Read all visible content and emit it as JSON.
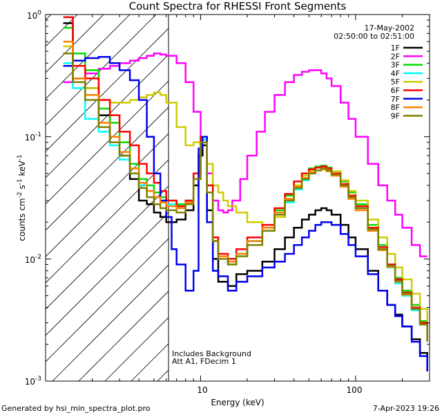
{
  "chart_data": {
    "type": "line",
    "title": "Count Spectra for RHESSI Front Segments",
    "xlabel": "Energy (keV)",
    "ylabel": "counts cm-2 s-1 keV-1",
    "x_scale": "log",
    "y_scale": "log",
    "xlim": [
      1.0,
      300.0
    ],
    "ylim": [
      0.001,
      1.0
    ],
    "x_tick_labels": [
      "10",
      "100"
    ],
    "y_tick_labels": [
      "10-3",
      "10-2",
      "10-1",
      "100"
    ],
    "date": "17-May-2002",
    "time_range": "02:50:00 to 02:51:00",
    "annotations": [
      "Includes Background",
      "Att A1, FDecim 1"
    ],
    "hatched_region": {
      "x_from": 1.0,
      "x_to": 6.0
    },
    "footer_left": "Generated by hsi_min_spectra_plot.pro",
    "footer_right": "7-Apr-2023 19:26",
    "series": [
      {
        "name": "1F",
        "color": "#000000",
        "x": [
          1.3,
          1.5,
          1.8,
          2.2,
          2.6,
          3.0,
          3.5,
          4.0,
          4.5,
          5.0,
          5.5,
          6.0,
          7.0,
          8.0,
          9.0,
          9.7,
          10.3,
          11.0,
          12.0,
          13.0,
          15.0,
          17.0,
          20.0,
          25.0,
          30.0,
          35.0,
          40.0,
          45.0,
          50.0,
          55.0,
          60.0,
          65.0,
          70.0,
          80.0,
          90.0,
          100.0,
          120.0,
          140.0,
          160.0,
          180.0,
          200.0,
          230.0,
          260.0,
          290.0
        ],
        "y": [
          0.85,
          0.3,
          0.25,
          0.15,
          0.1,
          0.07,
          0.045,
          0.03,
          0.028,
          0.024,
          0.022,
          0.02,
          0.021,
          0.025,
          0.04,
          0.07,
          0.085,
          0.025,
          0.01,
          0.0065,
          0.006,
          0.0075,
          0.008,
          0.0095,
          0.012,
          0.015,
          0.018,
          0.021,
          0.023,
          0.025,
          0.026,
          0.025,
          0.023,
          0.019,
          0.015,
          0.012,
          0.008,
          0.0055,
          0.0042,
          0.0035,
          0.0028,
          0.0022,
          0.0017,
          0.0012
        ]
      },
      {
        "name": "2F",
        "color": "#ff00ff",
        "x": [
          1.3,
          1.5,
          1.8,
          2.2,
          2.6,
          3.0,
          3.5,
          4.0,
          4.5,
          5.0,
          5.5,
          6.0,
          7.0,
          8.0,
          9.0,
          10.0,
          11.0,
          12.0,
          13.0,
          14.0,
          15.0,
          16.0,
          18.0,
          20.0,
          23.0,
          26.0,
          30.0,
          35.0,
          40.0,
          45.0,
          50.0,
          55.0,
          60.0,
          65.0,
          70.0,
          80.0,
          90.0,
          100.0,
          120.0,
          140.0,
          160.0,
          180.0,
          200.0,
          230.0,
          260.0,
          290.0
        ],
        "y": [
          0.28,
          0.3,
          0.33,
          0.36,
          0.38,
          0.4,
          0.42,
          0.44,
          0.46,
          0.48,
          0.47,
          0.46,
          0.4,
          0.28,
          0.16,
          0.09,
          0.05,
          0.03,
          0.025,
          0.024,
          0.025,
          0.03,
          0.045,
          0.07,
          0.11,
          0.16,
          0.22,
          0.28,
          0.32,
          0.34,
          0.35,
          0.35,
          0.33,
          0.3,
          0.26,
          0.19,
          0.14,
          0.1,
          0.06,
          0.04,
          0.03,
          0.023,
          0.018,
          0.013,
          0.0105,
          0.0105
        ]
      },
      {
        "name": "3F",
        "color": "#00dd00",
        "x": [
          1.3,
          1.5,
          1.8,
          2.2,
          2.6,
          3.0,
          3.5,
          4.0,
          4.5,
          5.0,
          5.5,
          6.0,
          7.0,
          8.0,
          9.0,
          10.0,
          11.0,
          12.0,
          13.0,
          15.0,
          17.0,
          20.0,
          25.0,
          30.0,
          35.0,
          40.0,
          45.0,
          50.0,
          55.0,
          60.0,
          65.0,
          70.0,
          80.0,
          90.0,
          100.0,
          120.0,
          140.0,
          160.0,
          180.0,
          200.0,
          230.0,
          260.0,
          290.0
        ],
        "y": [
          0.78,
          0.48,
          0.35,
          0.17,
          0.13,
          0.09,
          0.06,
          0.045,
          0.04,
          0.035,
          0.032,
          0.03,
          0.028,
          0.03,
          0.05,
          0.1,
          0.04,
          0.015,
          0.01,
          0.009,
          0.011,
          0.014,
          0.018,
          0.025,
          0.033,
          0.043,
          0.05,
          0.055,
          0.057,
          0.058,
          0.056,
          0.052,
          0.043,
          0.035,
          0.028,
          0.019,
          0.013,
          0.009,
          0.007,
          0.0055,
          0.0042,
          0.0031,
          0.0023
        ]
      },
      {
        "name": "4F",
        "color": "#00ffff",
        "x": [
          1.3,
          1.5,
          1.8,
          2.2,
          2.6,
          3.0,
          3.5,
          4.0,
          4.5,
          5.0,
          5.5,
          6.0,
          7.0,
          8.0,
          9.0,
          10.0,
          11.0,
          12.0,
          13.0,
          15.0,
          17.0,
          20.0,
          25.0,
          30.0,
          35.0,
          40.0,
          45.0,
          50.0,
          55.0,
          60.0,
          65.0,
          70.0,
          80.0,
          90.0,
          100.0,
          120.0,
          140.0,
          160.0,
          180.0,
          200.0,
          230.0,
          260.0,
          290.0
        ],
        "y": [
          0.4,
          0.25,
          0.14,
          0.11,
          0.085,
          0.065,
          0.05,
          0.04,
          0.036,
          0.032,
          0.03,
          0.028,
          0.027,
          0.03,
          0.05,
          0.095,
          0.035,
          0.014,
          0.01,
          0.0095,
          0.011,
          0.014,
          0.017,
          0.022,
          0.029,
          0.037,
          0.044,
          0.05,
          0.053,
          0.055,
          0.053,
          0.049,
          0.04,
          0.032,
          0.026,
          0.017,
          0.012,
          0.0085,
          0.0063,
          0.005,
          0.0038,
          0.0029,
          0.0021
        ]
      },
      {
        "name": "5F",
        "color": "#cccc00",
        "x": [
          1.3,
          1.5,
          1.8,
          2.2,
          2.6,
          3.0,
          3.5,
          4.0,
          4.5,
          5.0,
          5.5,
          6.0,
          7.0,
          8.0,
          9.0,
          10.0,
          11.0,
          12.0,
          13.0,
          14.0,
          15.0,
          17.0,
          20.0,
          25.0,
          30.0,
          35.0,
          40.0,
          45.0,
          50.0,
          55.0,
          60.0,
          65.0,
          70.0,
          80.0,
          90.0,
          100.0,
          120.0,
          140.0,
          160.0,
          180.0,
          200.0,
          230.0,
          260.0,
          290.0
        ],
        "y": [
          0.55,
          0.3,
          0.25,
          0.2,
          0.19,
          0.19,
          0.2,
          0.21,
          0.22,
          0.23,
          0.22,
          0.19,
          0.12,
          0.085,
          0.09,
          0.1,
          0.06,
          0.04,
          0.035,
          0.03,
          0.027,
          0.024,
          0.02,
          0.018,
          0.022,
          0.03,
          0.04,
          0.048,
          0.053,
          0.056,
          0.057,
          0.055,
          0.052,
          0.044,
          0.036,
          0.03,
          0.021,
          0.015,
          0.011,
          0.0085,
          0.0068,
          0.0052,
          0.0039,
          0.003
        ]
      },
      {
        "name": "6F",
        "color": "#ff0000",
        "x": [
          1.3,
          1.5,
          1.8,
          2.2,
          2.6,
          3.0,
          3.5,
          4.0,
          4.5,
          5.0,
          5.5,
          6.0,
          7.0,
          8.0,
          9.0,
          10.0,
          11.0,
          12.0,
          13.0,
          15.0,
          17.0,
          20.0,
          25.0,
          30.0,
          35.0,
          40.0,
          45.0,
          50.0,
          55.0,
          60.0,
          65.0,
          70.0,
          80.0,
          90.0,
          100.0,
          120.0,
          140.0,
          160.0,
          180.0,
          200.0,
          230.0,
          260.0,
          290.0
        ],
        "y": [
          0.95,
          0.38,
          0.3,
          0.2,
          0.15,
          0.11,
          0.085,
          0.06,
          0.05,
          0.042,
          0.036,
          0.03,
          0.027,
          0.03,
          0.05,
          0.1,
          0.04,
          0.015,
          0.011,
          0.01,
          0.012,
          0.015,
          0.019,
          0.026,
          0.034,
          0.043,
          0.05,
          0.054,
          0.056,
          0.057,
          0.055,
          0.05,
          0.041,
          0.033,
          0.027,
          0.018,
          0.0125,
          0.009,
          0.0068,
          0.0053,
          0.004,
          0.003,
          0.0022
        ]
      },
      {
        "name": "7F",
        "color": "#0000ee",
        "x": [
          1.3,
          1.5,
          1.8,
          2.2,
          2.6,
          3.0,
          3.5,
          4.0,
          4.5,
          5.0,
          5.5,
          6.0,
          6.5,
          7.0,
          8.0,
          9.0,
          9.7,
          10.3,
          11.0,
          12.0,
          13.0,
          15.0,
          17.0,
          20.0,
          25.0,
          30.0,
          35.0,
          40.0,
          45.0,
          50.0,
          55.0,
          60.0,
          65.0,
          70.0,
          80.0,
          90.0,
          100.0,
          120.0,
          140.0,
          160.0,
          180.0,
          200.0,
          230.0,
          260.0,
          290.0
        ],
        "y": [
          0.38,
          0.42,
          0.44,
          0.45,
          0.4,
          0.35,
          0.29,
          0.2,
          0.1,
          0.05,
          0.03,
          0.022,
          0.012,
          0.009,
          0.0055,
          0.008,
          0.08,
          0.1,
          0.02,
          0.008,
          0.0072,
          0.0055,
          0.0065,
          0.0072,
          0.0085,
          0.0095,
          0.011,
          0.013,
          0.015,
          0.017,
          0.019,
          0.02,
          0.02,
          0.019,
          0.016,
          0.013,
          0.0105,
          0.0075,
          0.0055,
          0.0042,
          0.0034,
          0.0028,
          0.0021,
          0.0016,
          0.0012
        ]
      },
      {
        "name": "8F",
        "color": "#ff8000",
        "x": [
          1.3,
          1.5,
          1.8,
          2.2,
          2.6,
          3.0,
          3.5,
          4.0,
          4.5,
          5.0,
          5.5,
          6.0,
          7.0,
          8.0,
          9.0,
          10.0,
          11.0,
          12.0,
          13.0,
          15.0,
          17.0,
          20.0,
          25.0,
          30.0,
          35.0,
          40.0,
          45.0,
          50.0,
          55.0,
          60.0,
          65.0,
          70.0,
          80.0,
          90.0,
          100.0,
          120.0,
          140.0,
          160.0,
          180.0,
          200.0,
          230.0,
          260.0,
          290.0
        ],
        "y": [
          0.6,
          0.3,
          0.22,
          0.13,
          0.1,
          0.075,
          0.055,
          0.042,
          0.036,
          0.032,
          0.029,
          0.027,
          0.026,
          0.029,
          0.045,
          0.09,
          0.035,
          0.014,
          0.0105,
          0.0095,
          0.011,
          0.014,
          0.018,
          0.024,
          0.031,
          0.039,
          0.046,
          0.051,
          0.053,
          0.054,
          0.052,
          0.048,
          0.039,
          0.031,
          0.025,
          0.017,
          0.0118,
          0.0086,
          0.0065,
          0.0051,
          0.0039,
          0.0029,
          0.0021
        ]
      },
      {
        "name": "9F",
        "color": "#808000",
        "x": [
          1.3,
          1.5,
          1.8,
          2.2,
          2.6,
          3.0,
          3.5,
          4.0,
          4.5,
          5.0,
          5.5,
          6.0,
          7.0,
          8.0,
          9.0,
          10.0,
          11.0,
          12.0,
          13.0,
          15.0,
          17.0,
          20.0,
          25.0,
          30.0,
          35.0,
          40.0,
          45.0,
          50.0,
          55.0,
          60.0,
          65.0,
          70.0,
          80.0,
          90.0,
          100.0,
          120.0,
          140.0,
          160.0,
          180.0,
          200.0,
          230.0,
          260.0,
          290.0
        ],
        "y": [
          0.48,
          0.28,
          0.2,
          0.12,
          0.09,
          0.07,
          0.05,
          0.038,
          0.032,
          0.028,
          0.026,
          0.025,
          0.024,
          0.028,
          0.045,
          0.09,
          0.035,
          0.014,
          0.01,
          0.009,
          0.0105,
          0.013,
          0.017,
          0.023,
          0.03,
          0.038,
          0.045,
          0.05,
          0.053,
          0.055,
          0.053,
          0.049,
          0.04,
          0.032,
          0.026,
          0.0175,
          0.012,
          0.0088,
          0.0066,
          0.0052,
          0.0039,
          0.0029,
          0.0021
        ]
      }
    ]
  }
}
